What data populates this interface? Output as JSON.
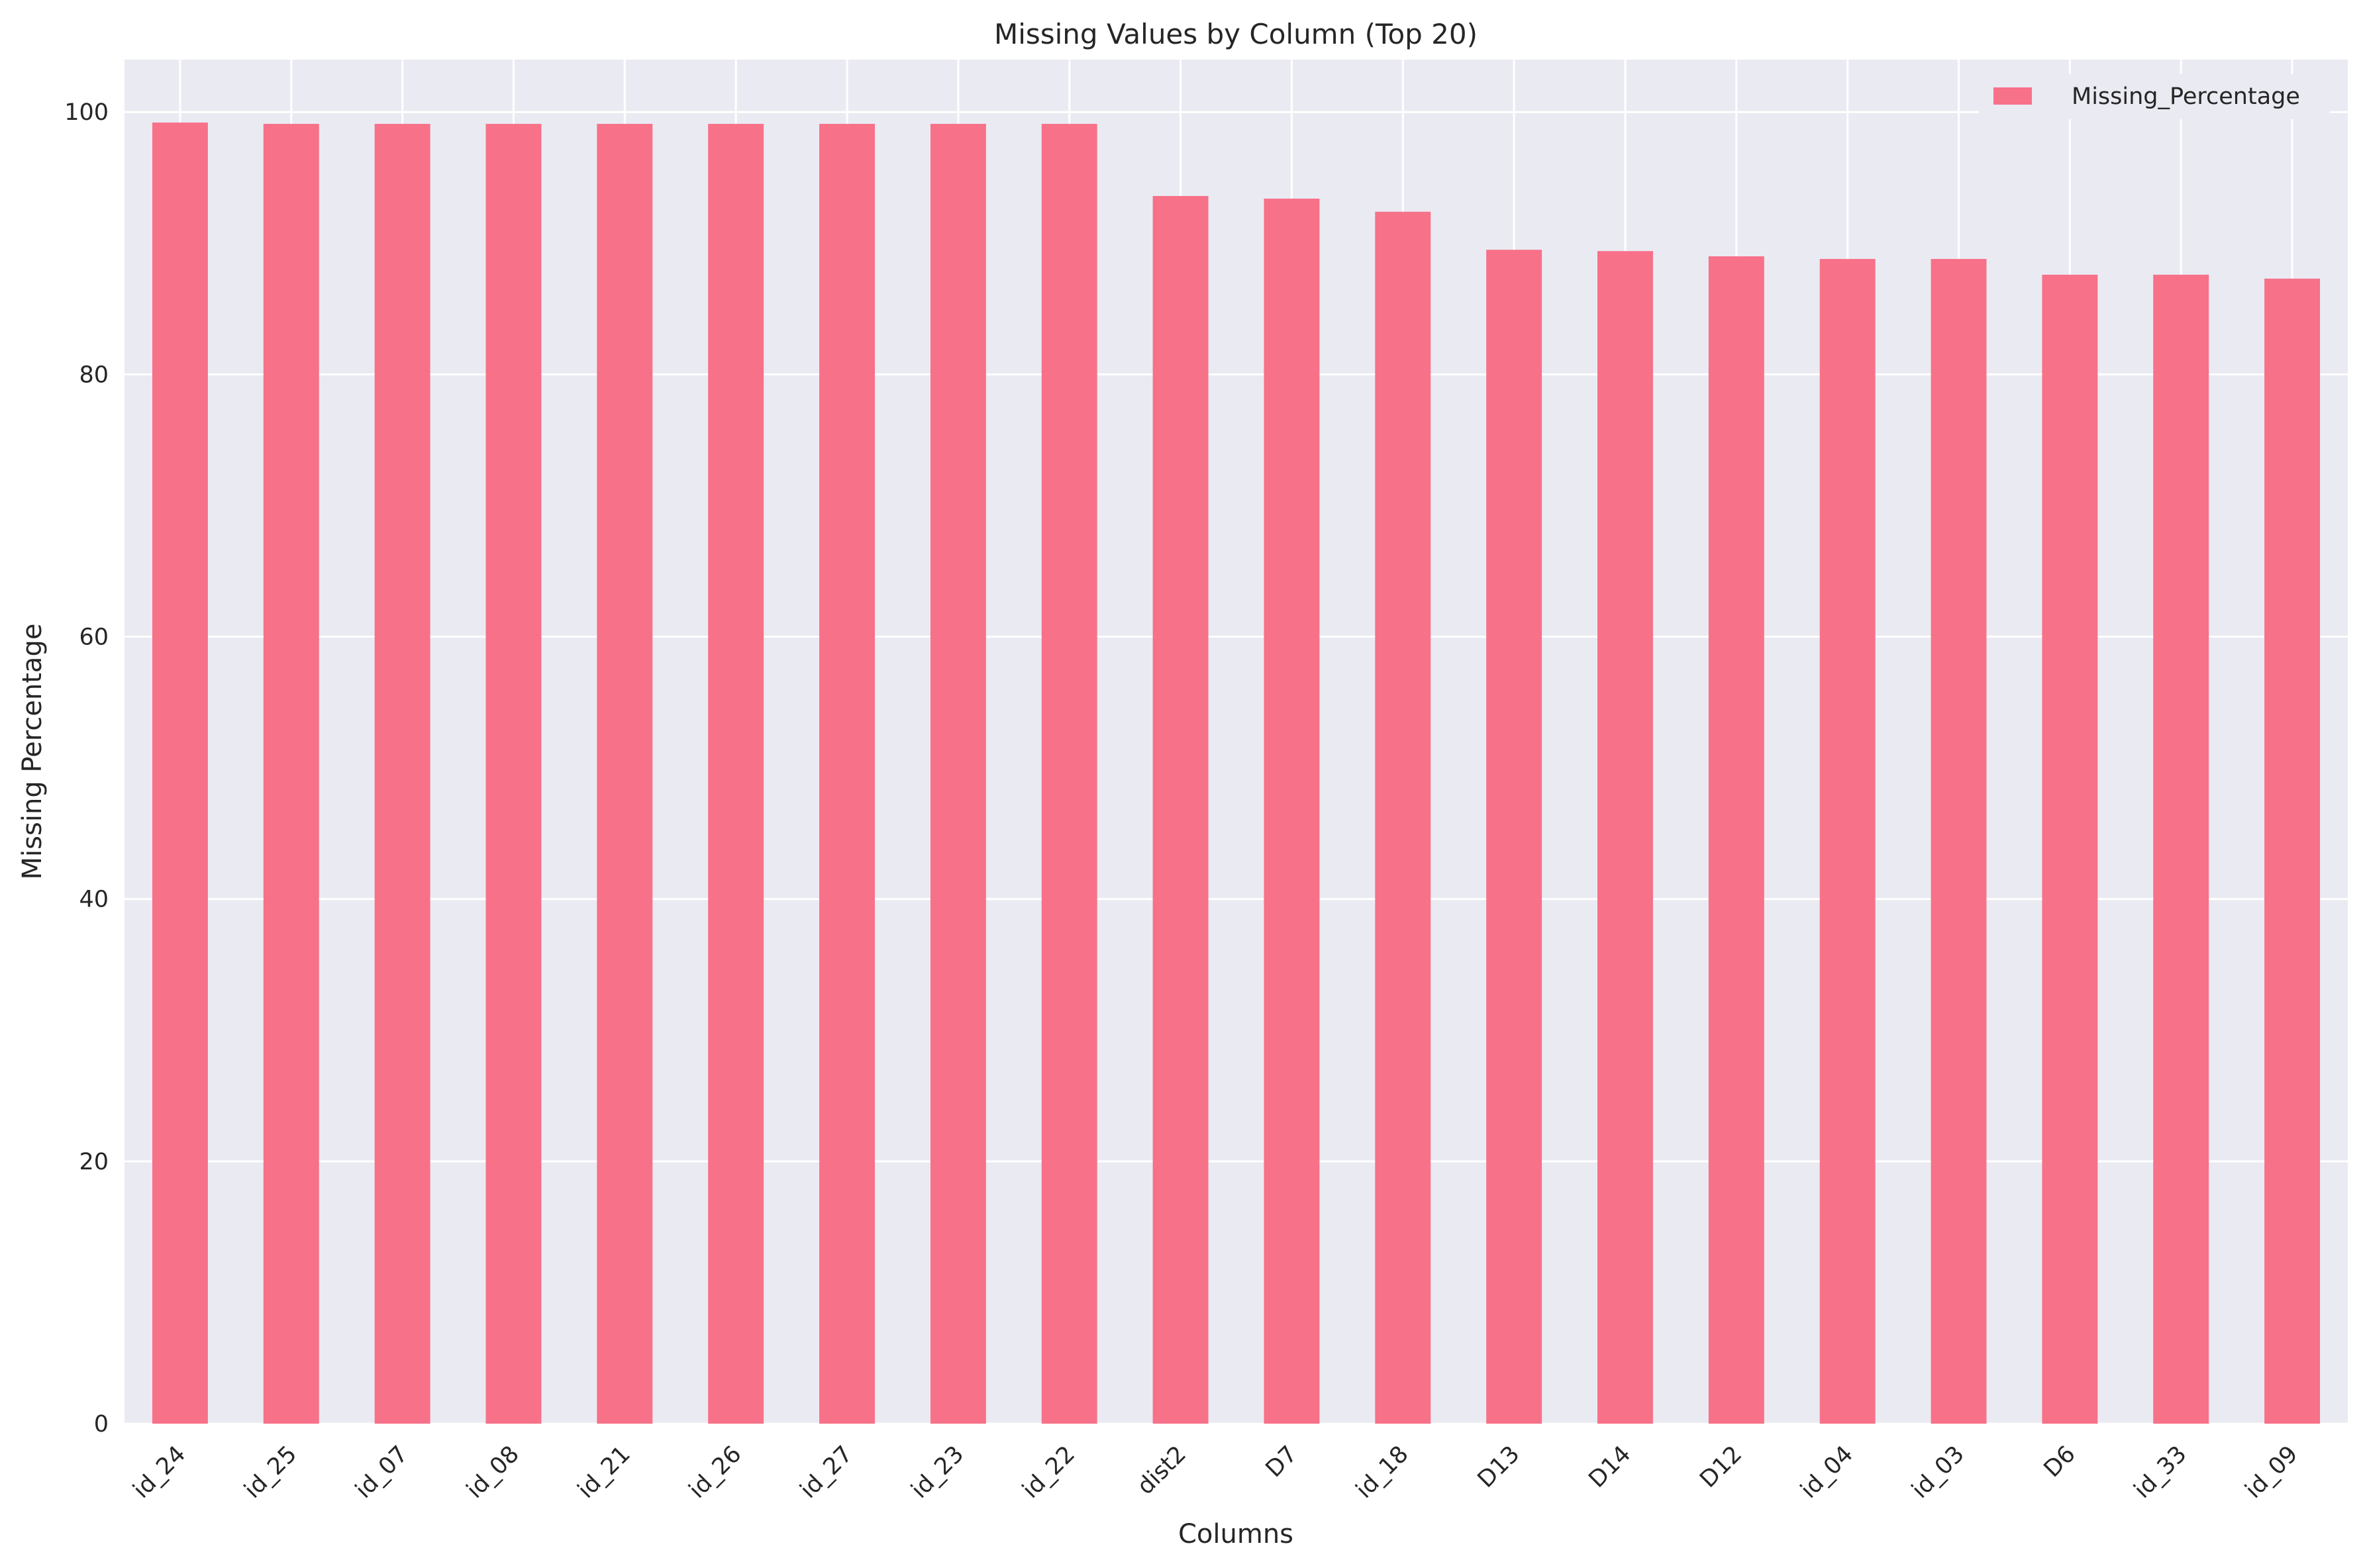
{
  "chart_data": {
    "type": "bar",
    "title": "Missing Values by Column (Top 20)",
    "xlabel": "Columns",
    "ylabel": "Missing Percentage",
    "ylim": [
      0,
      104
    ],
    "yticks": [
      0,
      20,
      40,
      60,
      80,
      100
    ],
    "grid": true,
    "legend_placement": "top-right",
    "categories": [
      "id_24",
      "id_25",
      "id_07",
      "id_08",
      "id_21",
      "id_26",
      "id_27",
      "id_23",
      "id_22",
      "dist2",
      "D7",
      "id_18",
      "D13",
      "D14",
      "D12",
      "id_04",
      "id_03",
      "D6",
      "id_33",
      "id_09"
    ],
    "series": [
      {
        "name": "Missing_Percentage",
        "color": "#f77189",
        "values": [
          99.2,
          99.1,
          99.1,
          99.1,
          99.1,
          99.1,
          99.1,
          99.1,
          99.1,
          93.6,
          93.4,
          92.4,
          89.5,
          89.4,
          89.0,
          88.8,
          88.8,
          87.6,
          87.6,
          87.3
        ]
      }
    ],
    "colors": {
      "plot_background": "#eaeaf2",
      "grid": "#ffffff",
      "text": "#262626"
    }
  }
}
